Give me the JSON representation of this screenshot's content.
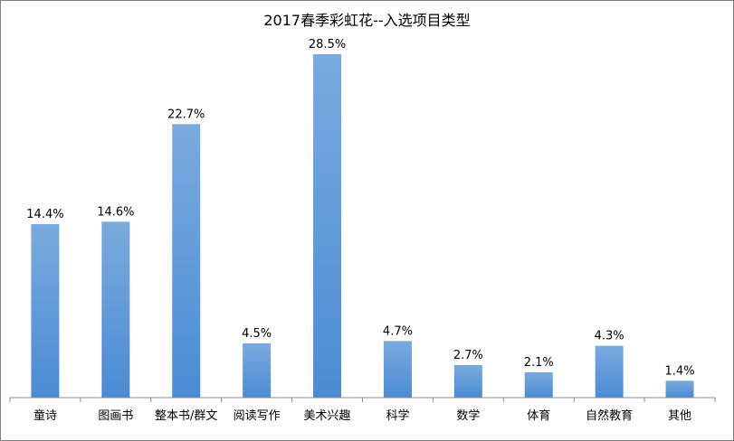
{
  "chart_data": {
    "type": "bar",
    "title": "2017春季彩虹花--入选项目类型",
    "xlabel": "",
    "ylabel": "",
    "categories": [
      "童诗",
      "图画书",
      "整本书/群文",
      "阅读写作",
      "美术兴趣",
      "科学",
      "数学",
      "体育",
      "自然教育",
      "其他"
    ],
    "values": [
      14.4,
      14.6,
      22.7,
      4.5,
      28.5,
      4.7,
      2.7,
      2.1,
      4.3,
      1.4
    ],
    "data_labels": [
      "14.4%",
      "14.6%",
      "22.7%",
      "4.5%",
      "28.5%",
      "4.7%",
      "2.7%",
      "2.1%",
      "4.3%",
      "1.4%"
    ],
    "unit": "%",
    "ylim": [
      0,
      30
    ],
    "grid": false,
    "legend": "none",
    "bar_color_top": "#7aaade",
    "bar_color_bottom": "#4a8cd4",
    "axis_color": "#8c8c8c"
  }
}
